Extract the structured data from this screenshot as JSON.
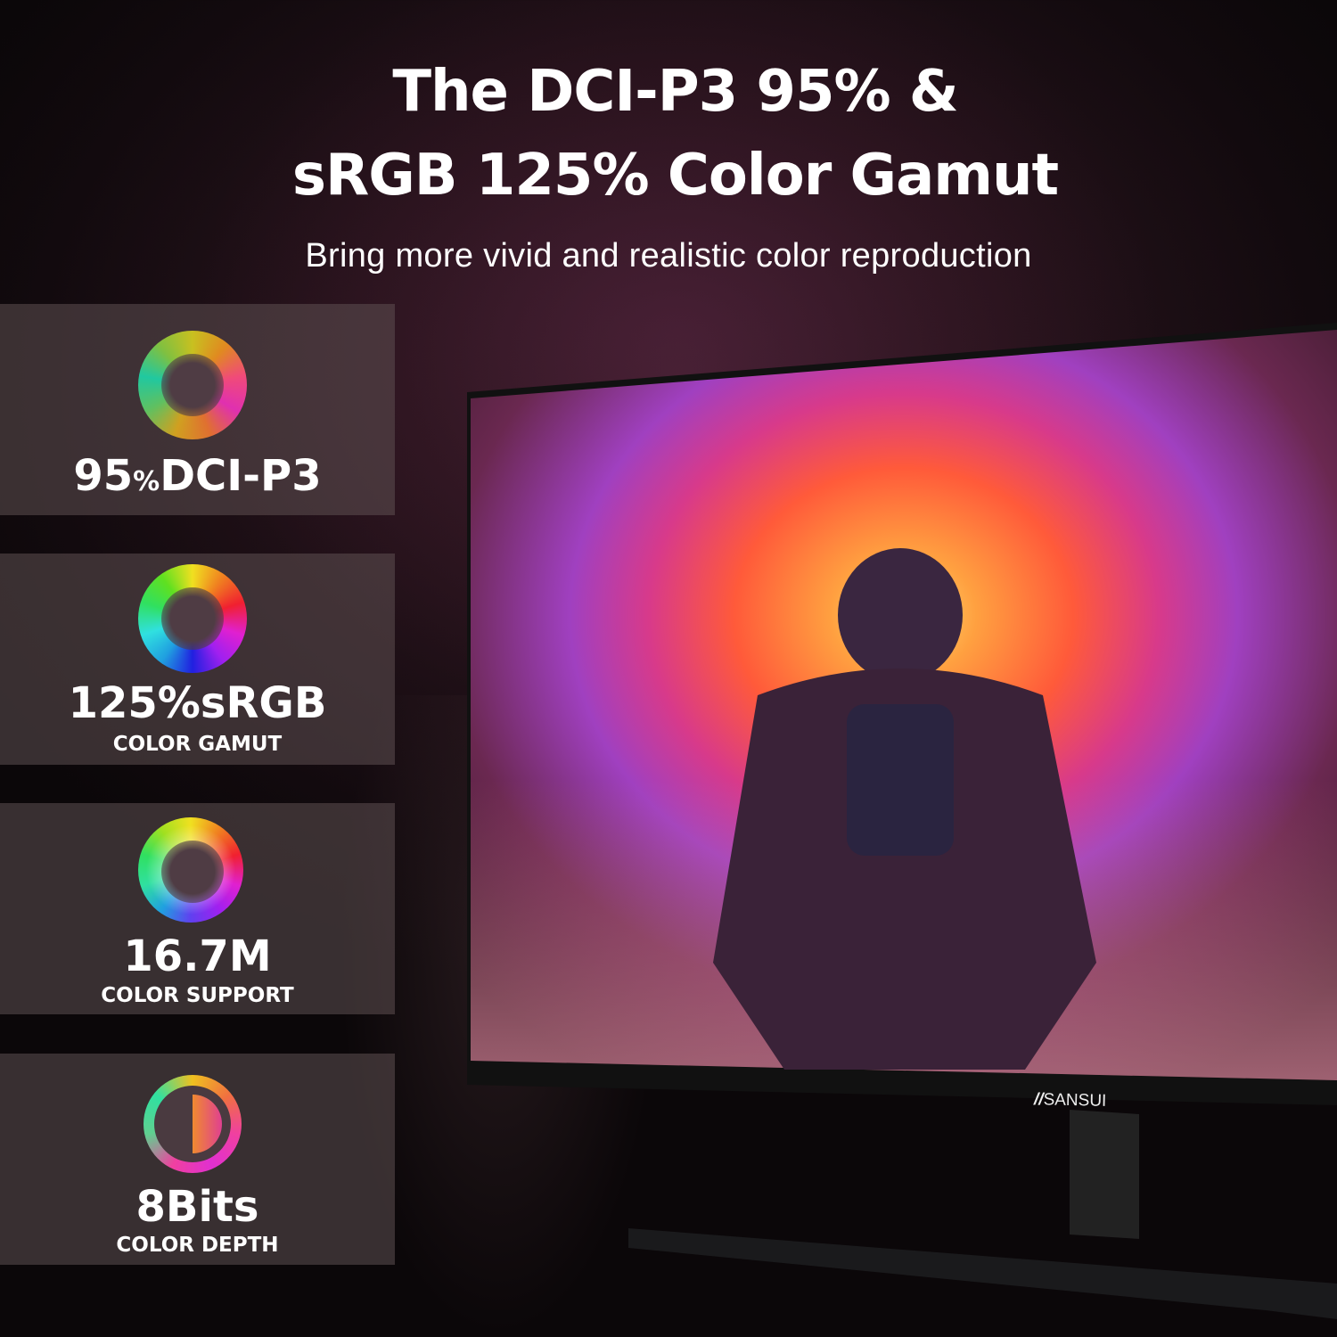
{
  "header": {
    "title_line1": "The DCI-P3 95% &",
    "title_line2": "sRGB 125% Color Gamut",
    "subtitle": "Bring more vivid and realistic color reproduction"
  },
  "features": [
    {
      "icon": "dci-p3-color-ring-icon",
      "value": "95",
      "unit": "%",
      "label": "DCI-P3",
      "caption": ""
    },
    {
      "icon": "srgb-color-wheel-icon",
      "value": "125",
      "unit": "%",
      "label": "sRGB",
      "caption": "COLOR GAMUT"
    },
    {
      "icon": "color-spectrum-disc-icon",
      "value": "16.7M",
      "unit": "",
      "label": "",
      "caption": "COLOR SUPPORT"
    },
    {
      "icon": "color-depth-icon",
      "value": "8Bits",
      "unit": "",
      "label": "",
      "caption": "COLOR DEPTH"
    }
  ],
  "monitor": {
    "brand": "SANSUI"
  },
  "colors": {
    "background": "#1a0e14",
    "panel": "#5f5052",
    "text": "#ffffff",
    "accent_magenta": "#e040c0",
    "accent_orange": "#ff7a30"
  }
}
